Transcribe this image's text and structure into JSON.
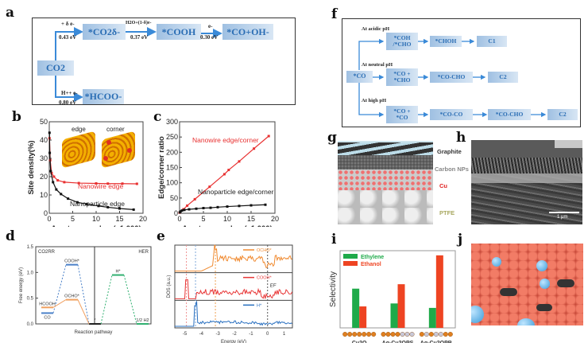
{
  "panel_labels": {
    "a": "a",
    "b": "b",
    "c": "c",
    "d": "d",
    "e": "e",
    "f": "f",
    "g": "g",
    "h": "h",
    "i": "i",
    "j": "j"
  },
  "panel_a": {
    "start": "CO2",
    "nodes": [
      "*CO2δ-",
      "*COOH",
      "*CO+OH-",
      "*HCOO-"
    ],
    "steps": [
      {
        "top": "+ δ e-",
        "bottom": "0.43 eV"
      },
      {
        "top": "H2O+(1-δ)e-",
        "bottom": "0.37 eV"
      },
      {
        "top": "e-",
        "bottom": "0.30 eV"
      },
      {
        "top": "H++ e-",
        "bottom": "0.80 eV"
      }
    ]
  },
  "panel_f": {
    "start": "*CO",
    "rows": [
      {
        "label": "At acidic pH",
        "nodes": [
          "*COH /*CHO",
          "*CHOH",
          "C1"
        ]
      },
      {
        "label": "At neutral pH",
        "nodes": [
          "*CO + *CHO",
          "*CO-CHO",
          "C2"
        ]
      },
      {
        "label": "At high pH",
        "nodes": [
          "*CO + *CO",
          "*CO-CO",
          "*CO-CHO",
          "C2"
        ]
      }
    ]
  },
  "panel_g": {
    "labels": [
      "Graphite",
      "Carbon NPs",
      "Cu",
      "PTFE"
    ],
    "label_colors": [
      "#333333",
      "#888888",
      "#e02020",
      "#a8a860"
    ]
  },
  "panel_h": {
    "scale_bar": "1 μm"
  },
  "inset_b": {
    "edge": "edge",
    "corner": "corner"
  },
  "chart_data": [
    {
      "id": "b",
      "type": "line",
      "xlabel": "Au atom number (x1,000)",
      "ylabel": "Site density(%)",
      "xlim": [
        0,
        20
      ],
      "ylim": [
        0,
        50
      ],
      "xticks": [
        0,
        5,
        10,
        15,
        20
      ],
      "yticks": [
        0,
        10,
        20,
        30,
        40,
        50
      ],
      "series": [
        {
          "name": "Nanowire edge",
          "color": "#e83030",
          "x": [
            0.05,
            0.2,
            0.5,
            1,
            1.8,
            3.2,
            6.3,
            10,
            12.5,
            15.6,
            18.7
          ],
          "y": [
            41,
            29,
            22,
            20,
            18,
            17,
            16.5,
            16.3,
            16.2,
            16.2,
            16.1
          ]
        },
        {
          "name": "Nanoparticle edge",
          "color": "#111111",
          "x": [
            0.05,
            0.1,
            0.3,
            0.8,
            1.5,
            2.5,
            4,
            6,
            8,
            10.5,
            12.5,
            15,
            18
          ],
          "y": [
            44,
            33,
            23,
            17,
            13,
            10.5,
            8,
            6,
            5,
            4,
            3.3,
            2.6,
            2
          ]
        }
      ]
    },
    {
      "id": "c",
      "type": "line",
      "xlabel": "Au atom number (x1,000)",
      "ylabel": "Edge/corner ratio",
      "xlim": [
        0,
        20
      ],
      "ylim": [
        0,
        300
      ],
      "xticks": [
        0,
        5,
        10,
        15,
        20
      ],
      "yticks": [
        0,
        50,
        100,
        150,
        200,
        250,
        300
      ],
      "series": [
        {
          "name": "Nanowire edge/corner",
          "color": "#e83030",
          "x": [
            0,
            0.8,
            1.6,
            3.2,
            6.3,
            9.4,
            10.3,
            12.5,
            15.6,
            18.7
          ],
          "y": [
            2,
            13,
            25,
            46,
            87,
            128,
            142,
            170,
            212,
            253
          ]
        },
        {
          "name": "Nanoparticle edge/corner",
          "color": "#111111",
          "x": [
            0.05,
            0.2,
            0.5,
            1,
            2,
            3.5,
            5,
            6.5,
            8,
            10,
            12.5,
            15,
            18
          ],
          "y": [
            3,
            6,
            9,
            11,
            13,
            15,
            17,
            18,
            20,
            22,
            24,
            26,
            28
          ]
        }
      ]
    },
    {
      "id": "d",
      "type": "line",
      "xlabel": "Reaction pathway",
      "ylabel": "Free energy (eV)",
      "ylim": [
        0,
        1.5
      ],
      "yticks": [
        "0.0",
        "0.5",
        "1.0",
        "1.5"
      ],
      "sections": [
        "CO2RR",
        "HER"
      ],
      "levels": [
        {
          "label": "HCOOH",
          "value": 0.32,
          "color": "#f0a060"
        },
        {
          "label": "CO",
          "value": 0.21,
          "color": "#4a80c8"
        },
        {
          "label": "COOH*",
          "value": 1.15,
          "color": "#4a80c8"
        },
        {
          "label": "OCHO*",
          "value": 0.47,
          "color": "#f0a060"
        },
        {
          "label": "*",
          "value": 0.0,
          "color": "#222222"
        },
        {
          "label": "H*",
          "value": 0.95,
          "color": "#30b070"
        },
        {
          "label": "1/2 H2",
          "value": 0.0,
          "color": "#30b070"
        }
      ]
    },
    {
      "id": "e",
      "type": "line",
      "xlabel": "Energy (eV)",
      "ylabel": "DOS (a.u.)",
      "xlim": [
        -5.6,
        1.5
      ],
      "xticks": [
        -5,
        -4,
        -3,
        -2,
        -1,
        0,
        1
      ],
      "fermi_label": "EF",
      "series": [
        {
          "name": "OCHO*",
          "color": "#f08a30"
        },
        {
          "name": "COOH*",
          "color": "#e83838"
        },
        {
          "name": "H*",
          "color": "#2a70c0"
        }
      ],
      "reference_lines": [
        {
          "x": -4.9,
          "color": "#f09090"
        },
        {
          "x": -4.35,
          "color": "#80a8d8"
        },
        {
          "x": -3.15,
          "color": "#f0a050"
        },
        {
          "x": 0,
          "color": "#555555"
        }
      ]
    },
    {
      "id": "i",
      "type": "bar",
      "ylabel": "Selectivity",
      "categories": [
        "Cu2O",
        "Ag-Cu2OPS",
        "Ag-Cu2OPB"
      ],
      "series": [
        {
          "name": "Ethylene",
          "color": "#1faa4a",
          "values": [
            0.53,
            0.33,
            0.27
          ]
        },
        {
          "name": "Ethanol",
          "color": "#ee4422",
          "values": [
            0.29,
            0.59,
            0.98
          ]
        }
      ]
    }
  ]
}
